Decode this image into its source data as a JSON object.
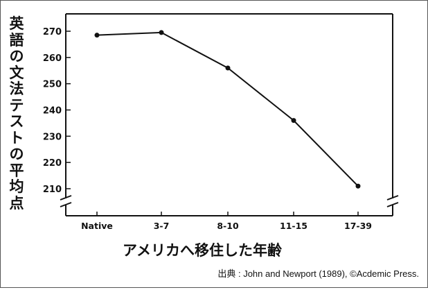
{
  "chart_data": {
    "type": "line",
    "ylabel": "英語の文法テストの平均点",
    "xlabel": "アメリカへ移住した年齢",
    "categories": [
      "Native",
      "3-7",
      "8-10",
      "11-15",
      "17-39"
    ],
    "series": [
      {
        "values": [
          268.5,
          269.5,
          256,
          236,
          211
        ]
      }
    ],
    "yticks": [
      210,
      220,
      230,
      240,
      250,
      260,
      270
    ],
    "ylim": [
      205,
      273
    ],
    "axis_break": true,
    "grid": false,
    "line_color": "#111111"
  },
  "source": "出典 : John and Newport (1989), ©Acdemic Press."
}
